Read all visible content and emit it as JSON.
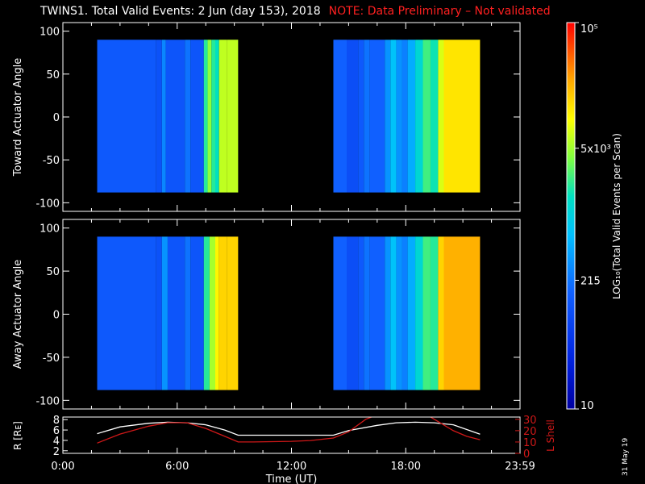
{
  "header": {
    "title": "TWINS1. Total Valid Events:  2 Jun (day 153), 2018",
    "note": "NOTE: Data Preliminary – Not validated"
  },
  "stamp": "31 May 19",
  "colors": {
    "background": "#000000",
    "axis": "#ffffff",
    "note": "#ff2020",
    "lshell": "#d01818",
    "r": "#ffffff"
  },
  "chart_data": [
    {
      "type": "heatmap",
      "ylabel": "Toward Actuator Angle",
      "ylim": [
        -110,
        110
      ],
      "yticks": [
        100,
        50,
        0,
        -50,
        -100
      ],
      "xlim": [
        0,
        24
      ],
      "data_segments": [
        [
          1.8,
          9.2
        ],
        [
          14.2,
          21.9
        ]
      ],
      "y_range": [
        -88,
        90
      ],
      "bands": [
        {
          "t": 1.8,
          "level": 0.28
        },
        {
          "t": 4.9,
          "level": 0.26
        },
        {
          "t": 5.2,
          "level": 0.36
        },
        {
          "t": 5.4,
          "level": 0.27
        },
        {
          "t": 6.4,
          "level": 0.33
        },
        {
          "t": 6.7,
          "level": 0.27
        },
        {
          "t": 7.4,
          "level": 0.58
        },
        {
          "t": 7.6,
          "level": 0.66
        },
        {
          "t": 7.8,
          "level": 0.58
        },
        {
          "t": 8.0,
          "level": 0.55
        },
        {
          "t": 8.2,
          "level": 0.7
        },
        {
          "t": 8.6,
          "level": 0.7
        },
        {
          "t": 14.2,
          "level": 0.3
        },
        {
          "t": 14.9,
          "level": 0.25
        },
        {
          "t": 15.5,
          "level": 0.28
        },
        {
          "t": 15.8,
          "level": 0.33
        },
        {
          "t": 16.1,
          "level": 0.3
        },
        {
          "t": 16.9,
          "level": 0.38
        },
        {
          "t": 17.2,
          "level": 0.46
        },
        {
          "t": 17.5,
          "level": 0.38
        },
        {
          "t": 17.8,
          "level": 0.35
        },
        {
          "t": 18.1,
          "level": 0.42
        },
        {
          "t": 18.5,
          "level": 0.52
        },
        {
          "t": 18.9,
          "level": 0.6
        },
        {
          "t": 19.3,
          "level": 0.56
        },
        {
          "t": 19.7,
          "level": 0.72
        },
        {
          "t": 20.0,
          "level": 0.78
        }
      ]
    },
    {
      "type": "heatmap",
      "ylabel": "Away Actuator Angle",
      "ylim": [
        -110,
        110
      ],
      "yticks": [
        100,
        50,
        0,
        -50,
        -100
      ],
      "xlim": [
        0,
        24
      ],
      "data_segments": [
        [
          1.8,
          9.2
        ],
        [
          14.2,
          21.9
        ]
      ],
      "y_range": [
        -88,
        90
      ],
      "bands": [
        {
          "t": 1.8,
          "level": 0.28
        },
        {
          "t": 4.9,
          "level": 0.26
        },
        {
          "t": 5.2,
          "level": 0.38
        },
        {
          "t": 5.5,
          "level": 0.27
        },
        {
          "t": 6.4,
          "level": 0.33
        },
        {
          "t": 6.7,
          "level": 0.27
        },
        {
          "t": 7.4,
          "level": 0.58
        },
        {
          "t": 7.7,
          "level": 0.68
        },
        {
          "t": 8.0,
          "level": 0.76
        },
        {
          "t": 8.2,
          "level": 0.8
        },
        {
          "t": 8.6,
          "level": 0.8
        },
        {
          "t": 14.2,
          "level": 0.3
        },
        {
          "t": 14.9,
          "level": 0.25
        },
        {
          "t": 15.5,
          "level": 0.28
        },
        {
          "t": 15.8,
          "level": 0.33
        },
        {
          "t": 16.1,
          "level": 0.3
        },
        {
          "t": 16.9,
          "level": 0.38
        },
        {
          "t": 17.2,
          "level": 0.46
        },
        {
          "t": 17.5,
          "level": 0.38
        },
        {
          "t": 17.8,
          "level": 0.35
        },
        {
          "t": 18.1,
          "level": 0.42
        },
        {
          "t": 18.5,
          "level": 0.52
        },
        {
          "t": 18.9,
          "level": 0.6
        },
        {
          "t": 19.3,
          "level": 0.58
        },
        {
          "t": 19.7,
          "level": 0.8
        },
        {
          "t": 20.0,
          "level": 0.84
        }
      ]
    },
    {
      "type": "line",
      "xlabel": "Time (UT)",
      "xticks": [
        "0:00",
        "6:00",
        "12:00",
        "18:00",
        "23:59"
      ],
      "xtick_hours": [
        0,
        6,
        12,
        18,
        24
      ],
      "xlim": [
        0,
        24
      ],
      "ylabel_left": "R [Rᴇ]",
      "yticks_left": [
        2,
        4,
        6,
        8
      ],
      "ylim_left": [
        1.5,
        8.5
      ],
      "ylabel_right": "L Shell",
      "yticks_right": [
        0,
        10,
        20,
        30
      ],
      "ylim_right": [
        0,
        32
      ],
      "series": [
        {
          "name": "R [Rᴇ]",
          "axis": "left",
          "color": "#ffffff",
          "x": [
            1.8,
            3,
            4.5,
            5.5,
            6.5,
            7.5,
            8.5,
            9.2,
            10,
            11,
            12,
            13,
            14.2,
            15,
            16.5,
            17.5,
            18.5,
            19.5,
            20.5,
            21.9
          ],
          "y": [
            5.3,
            6.6,
            7.3,
            7.5,
            7.4,
            7.0,
            6.0,
            5.0,
            5.0,
            5.0,
            5.0,
            5.0,
            5.0,
            5.9,
            6.9,
            7.4,
            7.5,
            7.4,
            7.0,
            5.2
          ]
        },
        {
          "name": "L Shell",
          "axis": "right",
          "color": "#d01818",
          "x": [
            1.8,
            3,
            4.5,
            5.5,
            6.5,
            7.5,
            8.5,
            9.2,
            10,
            11,
            12,
            13,
            14.2,
            15,
            15.9,
            16.2
          ],
          "y": [
            9,
            17,
            24,
            27,
            27,
            22,
            15,
            10,
            10,
            10.3,
            10.6,
            11.3,
            13.5,
            19,
            30,
            32
          ]
        },
        {
          "name": "L Shell",
          "axis": "right",
          "color": "#d01818",
          "x": [
            19.3,
            19.6,
            20.5,
            21.2,
            21.9
          ],
          "y": [
            32,
            29,
            20,
            15,
            12
          ]
        }
      ]
    },
    {
      "type": "colorbar",
      "label": "LOG₁₀(Total Valid Events per Scan)",
      "tick_labels": [
        "10⁵",
        "5x10³",
        "215",
        "10"
      ],
      "tick_values": [
        100000,
        5000,
        215,
        10
      ],
      "range": [
        10,
        100000
      ],
      "scale": "log"
    }
  ]
}
